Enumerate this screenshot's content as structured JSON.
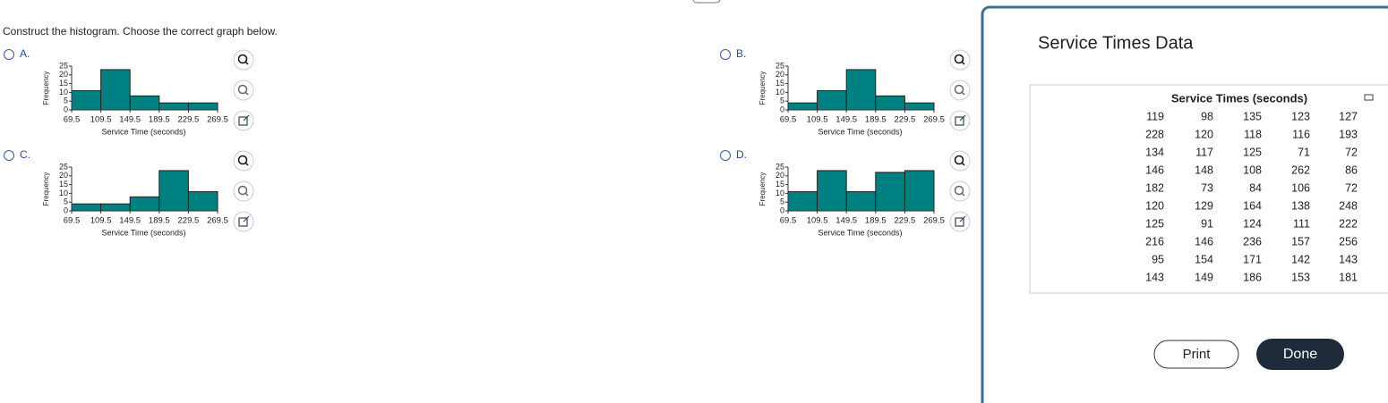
{
  "question": "Construct the histogram. Choose the correct graph below.",
  "options": [
    {
      "label": "A.",
      "chart": {
        "type": "histogram",
        "x_label": "Service Time (seconds)",
        "y_label": "Frequency",
        "color": "#008080",
        "bins": [
          69.5,
          109.5,
          149.5,
          189.5,
          229.5,
          269.5
        ],
        "values": [
          11,
          23,
          8,
          4,
          4
        ],
        "xlim": [
          69.5,
          269.5
        ],
        "xticks": [
          69.5,
          109.5,
          149.5,
          189.5,
          229.5,
          269.5
        ],
        "ylim": [
          0,
          25
        ],
        "yticks": [
          0,
          5,
          10,
          15,
          20,
          25
        ]
      }
    },
    {
      "label": "B.",
      "chart": {
        "type": "histogram",
        "x_label": "Service Time (seconds)",
        "y_label": "Frequency",
        "color": "#008080",
        "bins": [
          69.5,
          109.5,
          149.5,
          189.5,
          229.5,
          269.5
        ],
        "values": [
          4,
          11,
          23,
          8,
          4
        ],
        "xlim": [
          69.5,
          269.5
        ],
        "xticks": [
          69.5,
          109.5,
          149.5,
          189.5,
          229.5,
          269.5
        ],
        "ylim": [
          0,
          25
        ],
        "yticks": [
          0,
          5,
          10,
          15,
          20,
          25
        ]
      }
    },
    {
      "label": "C.",
      "chart": {
        "type": "histogram",
        "x_label": "Service Time (seconds)",
        "y_label": "Frequency",
        "color": "#008080",
        "bins": [
          69.5,
          109.5,
          149.5,
          189.5,
          229.5,
          269.5
        ],
        "values": [
          4,
          4,
          8,
          23,
          11
        ],
        "xlim": [
          69.5,
          269.5
        ],
        "xticks": [
          69.5,
          109.5,
          149.5,
          189.5,
          229.5,
          269.5
        ],
        "ylim": [
          0,
          25
        ],
        "yticks": [
          0,
          5,
          10,
          15,
          20,
          25
        ]
      }
    },
    {
      "label": "D.",
      "chart": {
        "type": "histogram",
        "x_label": "Service Time (seconds)",
        "y_label": "Frequency",
        "color": "#008080",
        "bins": [
          69.5,
          109.5,
          149.5,
          189.5,
          229.5,
          269.5
        ],
        "values": [
          11,
          23,
          11,
          22,
          23
        ],
        "xlim": [
          69.5,
          269.5
        ],
        "xticks": [
          69.5,
          109.5,
          149.5,
          189.5,
          229.5,
          269.5
        ],
        "ylim": [
          0,
          25
        ],
        "yticks": [
          0,
          5,
          10,
          15,
          20,
          25
        ]
      }
    }
  ],
  "dialog": {
    "title": "Service Times Data",
    "table": {
      "header": "Service Times (seconds)",
      "rows": [
        [
          119,
          98,
          135,
          123,
          127
        ],
        [
          228,
          120,
          118,
          116,
          193
        ],
        [
          134,
          117,
          125,
          71,
          72
        ],
        [
          146,
          148,
          108,
          262,
          86
        ],
        [
          182,
          73,
          84,
          106,
          72
        ],
        [
          120,
          129,
          164,
          138,
          248
        ],
        [
          125,
          91,
          124,
          111,
          222
        ],
        [
          216,
          146,
          236,
          157,
          256
        ],
        [
          95,
          154,
          171,
          142,
          143
        ],
        [
          143,
          149,
          186,
          153,
          181
        ]
      ]
    },
    "buttons": [
      "Print",
      "Done"
    ]
  }
}
